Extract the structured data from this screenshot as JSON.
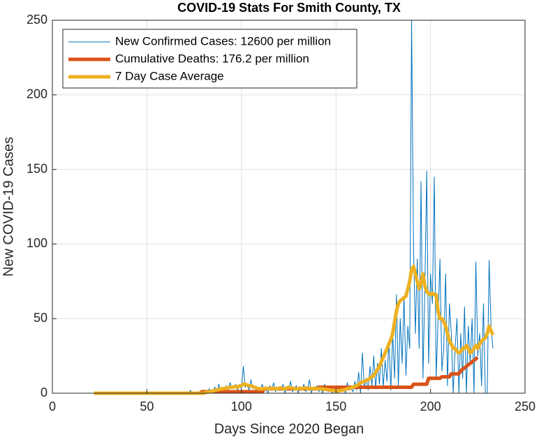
{
  "chart_data": {
    "type": "line",
    "title": "COVID-19 Stats For Smith County, TX",
    "xlabel": "Days Since 2020 Began",
    "ylabel": "New COVID-19 Cases",
    "xlim": [
      0,
      250
    ],
    "xticks": [
      0,
      50,
      100,
      150,
      200,
      250
    ],
    "ylim": [
      0,
      250
    ],
    "yticks": [
      0,
      50,
      100,
      150,
      200,
      250
    ],
    "grid": true,
    "legend": "northwest",
    "x": [
      22,
      23,
      24,
      25,
      26,
      27,
      28,
      29,
      30,
      31,
      32,
      33,
      34,
      35,
      36,
      37,
      38,
      39,
      40,
      41,
      42,
      43,
      44,
      45,
      46,
      47,
      48,
      49,
      50,
      51,
      52,
      53,
      54,
      55,
      56,
      57,
      58,
      59,
      60,
      61,
      62,
      63,
      64,
      65,
      66,
      67,
      68,
      69,
      70,
      71,
      72,
      73,
      74,
      75,
      76,
      77,
      78,
      79,
      80,
      81,
      82,
      83,
      84,
      85,
      86,
      87,
      88,
      89,
      90,
      91,
      92,
      93,
      94,
      95,
      96,
      97,
      98,
      99,
      100,
      101,
      102,
      103,
      104,
      105,
      106,
      107,
      108,
      109,
      110,
      111,
      112,
      113,
      114,
      115,
      116,
      117,
      118,
      119,
      120,
      121,
      122,
      123,
      124,
      125,
      126,
      127,
      128,
      129,
      130,
      131,
      132,
      133,
      134,
      135,
      136,
      137,
      138,
      139,
      140,
      141,
      142,
      143,
      144,
      145,
      146,
      147,
      148,
      149,
      150,
      151,
      152,
      153,
      154,
      155,
      156,
      157,
      158,
      159,
      160,
      161,
      162,
      163,
      164,
      165,
      166,
      167,
      168,
      169,
      170,
      171,
      172,
      173,
      174,
      175,
      176,
      177,
      178,
      179,
      180,
      181,
      182,
      183,
      184,
      185,
      186,
      187,
      188,
      189,
      190,
      191,
      192,
      193,
      194,
      195,
      196,
      197,
      198,
      199,
      200,
      201,
      202,
      203,
      204,
      205,
      206,
      207,
      208,
      209,
      210,
      211,
      212,
      213,
      214,
      215,
      216,
      217,
      218,
      219,
      220,
      221,
      222,
      223,
      224,
      225,
      226,
      227,
      228,
      229,
      230,
      231,
      232,
      233
    ],
    "series": [
      {
        "name": "New Confirmed Cases: 12600 per million",
        "color": "#0072BD",
        "values": [
          0,
          0,
          0,
          0,
          0,
          0,
          0,
          0,
          0,
          0,
          0,
          0,
          0,
          0,
          0,
          0,
          0,
          0,
          0,
          0,
          0,
          0,
          0,
          0,
          0,
          0,
          0,
          0,
          0,
          0,
          0,
          0,
          0,
          0,
          0,
          0,
          0,
          0,
          0,
          0,
          0,
          0,
          0,
          0,
          0,
          0,
          0,
          0,
          0,
          0,
          0,
          2,
          0,
          1,
          0,
          0,
          1,
          0,
          2,
          0,
          1,
          3,
          0,
          2,
          4,
          1,
          6,
          2,
          3,
          1,
          5,
          2,
          7,
          3,
          4,
          6,
          2,
          5,
          3,
          18,
          4,
          6,
          2,
          9,
          3,
          5,
          1,
          4,
          2,
          6,
          1,
          3,
          0,
          5,
          2,
          7,
          1,
          4,
          3,
          2,
          6,
          0,
          4,
          2,
          8,
          1,
          3,
          5,
          0,
          4,
          2,
          6,
          1,
          3,
          9,
          0,
          4,
          2,
          5,
          1,
          3,
          0,
          6,
          2,
          1,
          4,
          0,
          3,
          2,
          0,
          5,
          1,
          4,
          0,
          7,
          2,
          3,
          1,
          8,
          2,
          14,
          0,
          27,
          3,
          10,
          2,
          18,
          5,
          25,
          3,
          20,
          6,
          30,
          4,
          22,
          8,
          35,
          2,
          40,
          10,
          66,
          5,
          50,
          20,
          65,
          12,
          45,
          30,
          250,
          100,
          40,
          90,
          30,
          142,
          10,
          70,
          149,
          20,
          80,
          60,
          145,
          10,
          50,
          90,
          15,
          30,
          80,
          5,
          60,
          40,
          0,
          30,
          50,
          0,
          40,
          10,
          58,
          0,
          45,
          20,
          50,
          0,
          88,
          25,
          40,
          5,
          60,
          0,
          0,
          89,
          45,
          30
        ]
      },
      {
        "name": "Cumulative Deaths: 176.2 per million",
        "color": "#D95319",
        "values": [
          0,
          0,
          0,
          0,
          0,
          0,
          0,
          0,
          0,
          0,
          0,
          0,
          0,
          0,
          0,
          0,
          0,
          0,
          0,
          0,
          0,
          0,
          0,
          0,
          0,
          0,
          0,
          0,
          0,
          0,
          0,
          0,
          0,
          0,
          0,
          0,
          0,
          0,
          0,
          0,
          0,
          0,
          0,
          0,
          0,
          0,
          0,
          0,
          0,
          0,
          0,
          0,
          0,
          0,
          0,
          0,
          0,
          1,
          1,
          1,
          1,
          1,
          1,
          1,
          1,
          1,
          1,
          1,
          1,
          1,
          1,
          1,
          1,
          1,
          1,
          1,
          1,
          1,
          1,
          1,
          1,
          1,
          1,
          1,
          1,
          1,
          1,
          1,
          1,
          1,
          3,
          3,
          3,
          3,
          3,
          3,
          3,
          3,
          3,
          3,
          3,
          3,
          3,
          3,
          3,
          3,
          3,
          3,
          3,
          3,
          3,
          3,
          3,
          3,
          3,
          3,
          3,
          3,
          3,
          4,
          4,
          4,
          4,
          4,
          4,
          4,
          4,
          4,
          4,
          4,
          4,
          4,
          4,
          4,
          4,
          4,
          4,
          4,
          4,
          4,
          4,
          4,
          4,
          4,
          4,
          4,
          4,
          4,
          4,
          4,
          4,
          4,
          4,
          4,
          4,
          4,
          4,
          4,
          4,
          4,
          4,
          4,
          4,
          4,
          4,
          4,
          4,
          4,
          4,
          6,
          6,
          6,
          6,
          6,
          6,
          6,
          6,
          10,
          10,
          10,
          10,
          10,
          10,
          10,
          11,
          11,
          11,
          11,
          11,
          13,
          13,
          13,
          13,
          13,
          15,
          16,
          17,
          18,
          19,
          20,
          21,
          22,
          23,
          24,
          null,
          null,
          null,
          null,
          null,
          null,
          null,
          null
        ]
      },
      {
        "name": "7 Day Case Average",
        "color": "#EDB120",
        "values": [
          0,
          0,
          0,
          0,
          0,
          0,
          0,
          0,
          0,
          0,
          0,
          0,
          0,
          0,
          0,
          0,
          0,
          0,
          0,
          0,
          0,
          0,
          0,
          0,
          0,
          0,
          0,
          0,
          0,
          0,
          0,
          0,
          0,
          0,
          0,
          0,
          0,
          0,
          0,
          0,
          0,
          0,
          0,
          0,
          0,
          0,
          0,
          0,
          0,
          0,
          0,
          0,
          0,
          0,
          0,
          0,
          0,
          0,
          0,
          0.5,
          0.7,
          1,
          1.2,
          1.5,
          2,
          2.2,
          2.5,
          3,
          3,
          3.2,
          3.5,
          3.5,
          4,
          4,
          4.2,
          4.5,
          4,
          5,
          5,
          6,
          6,
          5.5,
          5,
          5,
          4.5,
          4,
          3.5,
          3,
          3,
          3,
          3,
          3.5,
          3,
          3,
          3.5,
          3,
          3,
          3,
          3.5,
          3.5,
          3,
          3,
          3.5,
          4,
          3.5,
          3.5,
          3,
          3,
          3,
          3.5,
          3,
          3.5,
          3.5,
          3,
          3.5,
          3,
          3,
          3.5,
          3,
          3,
          3,
          2.8,
          2.5,
          2.5,
          2.3,
          2,
          2,
          1.8,
          1.5,
          1.5,
          1.8,
          2,
          2.2,
          2.5,
          3,
          3.2,
          3.5,
          4,
          4.5,
          5,
          6,
          7,
          7.5,
          8,
          8.5,
          9,
          10,
          11,
          12,
          14,
          16,
          18,
          21,
          24,
          27,
          30,
          33,
          36,
          40,
          48,
          55,
          60,
          62,
          63,
          64,
          65,
          70,
          75,
          83,
          85,
          80,
          75,
          70,
          74,
          80,
          72,
          68,
          67,
          66,
          67,
          66,
          66,
          55,
          50,
          50,
          48,
          45,
          40,
          35,
          33,
          30,
          30,
          28,
          27,
          28,
          30,
          30,
          32,
          30,
          27,
          28,
          30,
          32,
          30,
          33,
          35,
          36,
          37,
          40,
          45,
          42,
          39
        ]
      }
    ]
  }
}
